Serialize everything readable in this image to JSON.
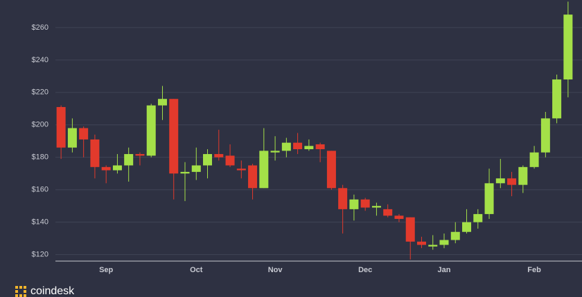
{
  "chart_data": {
    "type": "candlestick",
    "categories": [
      null,
      null,
      null,
      null,
      "Sep",
      null,
      null,
      null,
      null,
      null,
      null,
      null,
      "Oct",
      null,
      null,
      null,
      null,
      null,
      null,
      "Nov",
      null,
      null,
      null,
      null,
      null,
      null,
      null,
      "Dec",
      null,
      null,
      null,
      null,
      null,
      null,
      "Jan",
      null,
      null,
      null,
      null,
      null,
      null,
      null,
      "Feb",
      null,
      null,
      null
    ],
    "open": [
      211,
      186,
      198,
      191,
      174,
      172,
      175,
      182,
      181,
      212,
      216,
      170,
      171,
      175,
      182,
      181,
      173,
      175,
      161,
      183,
      184,
      189,
      185,
      188,
      184,
      161,
      148,
      154,
      149,
      148,
      144,
      143,
      128,
      125,
      126,
      129,
      134,
      140,
      145,
      164,
      167,
      163,
      174,
      183,
      204,
      228
    ],
    "high": [
      212,
      204,
      199,
      194,
      175,
      182,
      186,
      183,
      213,
      224,
      216,
      177,
      186,
      185,
      197,
      188,
      178,
      176,
      198,
      193,
      192,
      195,
      191,
      189,
      184,
      163,
      157,
      155,
      152,
      151,
      145,
      143,
      131,
      132,
      133,
      140,
      148,
      148,
      173,
      179,
      171,
      175,
      187,
      208,
      231,
      276
    ],
    "low": [
      179,
      183,
      180,
      167,
      164,
      170,
      165,
      175,
      180,
      203,
      154,
      153,
      166,
      167,
      178,
      174,
      167,
      154,
      161,
      178,
      180,
      182,
      184,
      177,
      160,
      133,
      141,
      147,
      144,
      143,
      140,
      117,
      124,
      123,
      124,
      127,
      133,
      136,
      142,
      161,
      156,
      158,
      173,
      180,
      201,
      217
    ],
    "close": [
      186,
      198,
      191,
      174,
      172,
      175,
      182,
      181,
      212,
      216,
      170,
      171,
      175,
      182,
      180,
      175,
      172,
      161,
      184,
      184,
      189,
      185,
      187,
      185,
      161,
      148,
      154,
      149,
      150,
      144,
      142,
      128,
      126,
      126,
      129,
      134,
      140,
      145,
      164,
      167,
      163,
      174,
      183,
      204,
      228,
      268
    ],
    "up_color": "#a4e048",
    "down_color": "#e23a2c",
    "ylim": [
      116,
      277
    ],
    "yticks": [
      {
        "value": 120,
        "label": "$120"
      },
      {
        "value": 140,
        "label": "$140"
      },
      {
        "value": 160,
        "label": "$160"
      },
      {
        "value": 180,
        "label": "$180"
      },
      {
        "value": 200,
        "label": "$200"
      },
      {
        "value": 220,
        "label": "$220"
      },
      {
        "value": 240,
        "label": "$240"
      },
      {
        "value": 260,
        "label": "$260"
      }
    ],
    "grid": true,
    "logo_text": "coindesk"
  }
}
